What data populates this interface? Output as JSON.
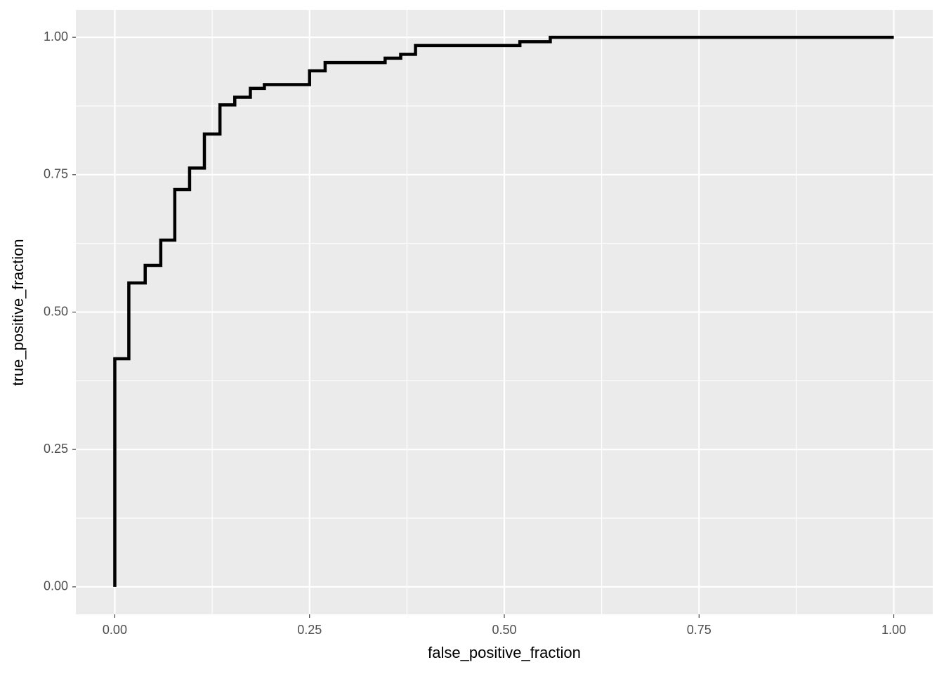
{
  "chart_data": {
    "type": "line",
    "color": "#000000",
    "x_label": "false_positive_fraction",
    "y_label": "true_positive_fraction",
    "x": [
      0,
      0,
      0.018,
      0.018,
      0.039,
      0.039,
      0.059,
      0.059,
      0.077,
      0.077,
      0.096,
      0.096,
      0.115,
      0.115,
      0.135,
      0.135,
      0.154,
      0.154,
      0.174,
      0.174,
      0.192,
      0.192,
      0.25,
      0.25,
      0.27,
      0.27,
      0.347,
      0.347,
      0.367,
      0.367,
      0.386,
      0.386,
      0.52,
      0.52,
      0.559,
      0.559,
      1
    ],
    "values": [
      0,
      0.415,
      0.415,
      0.553,
      0.553,
      0.585,
      0.585,
      0.631,
      0.631,
      0.723,
      0.723,
      0.762,
      0.762,
      0.824,
      0.824,
      0.877,
      0.877,
      0.891,
      0.891,
      0.907,
      0.907,
      0.914,
      0.914,
      0.939,
      0.939,
      0.954,
      0.954,
      0.962,
      0.962,
      0.969,
      0.969,
      0.985,
      0.985,
      0.992,
      0.992,
      1,
      1
    ],
    "xlim": [
      -0.05,
      1.05
    ],
    "ylim": [
      -0.05,
      1.05
    ],
    "xticks": [
      {
        "value": 0,
        "label": "0.00"
      },
      {
        "value": 0.25,
        "label": "0.25"
      },
      {
        "value": 0.5,
        "label": "0.50"
      },
      {
        "value": 0.75,
        "label": "0.75"
      },
      {
        "value": 1,
        "label": "1.00"
      }
    ],
    "yticks": [
      {
        "value": 0,
        "label": "0.00"
      },
      {
        "value": 0.25,
        "label": "0.25"
      },
      {
        "value": 0.5,
        "label": "0.50"
      },
      {
        "value": 0.75,
        "label": "0.75"
      },
      {
        "value": 1,
        "label": "1.00"
      }
    ],
    "grid": true
  }
}
